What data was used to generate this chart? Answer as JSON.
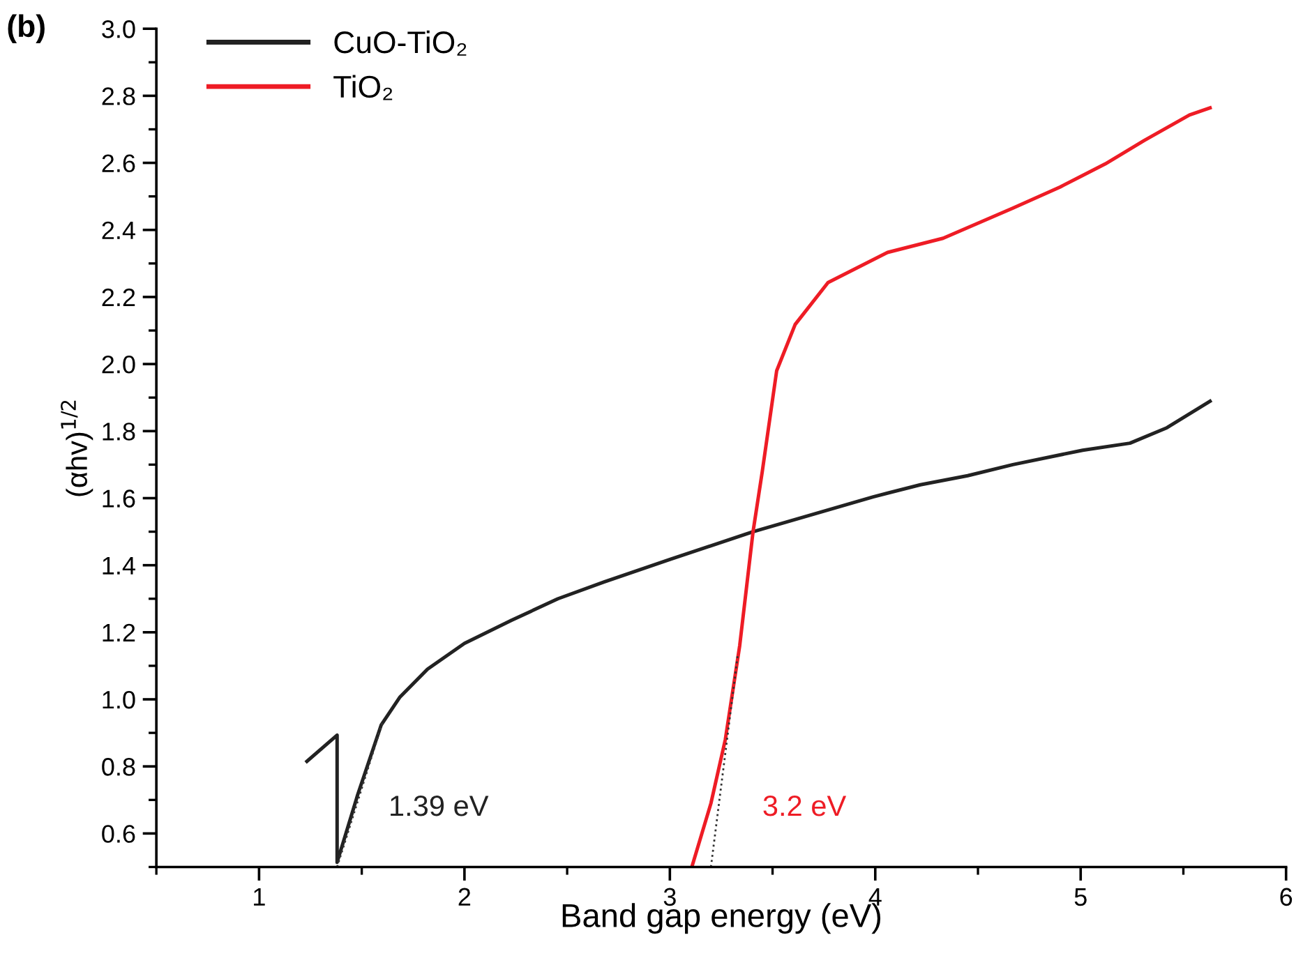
{
  "chart_data": {
    "type": "line",
    "xlabel": "Band gap energy (eV)",
    "ylabel": "(αhv)$^{1/2}$",
    "xlim": [
      0.5,
      6
    ],
    "xticks": [
      1,
      2,
      3,
      4,
      5,
      6
    ],
    "ylim": [
      0.5,
      3.0
    ],
    "yticks": [
      0.6,
      0.8,
      {
        "value": 1,
        "label": "1.0"
      },
      1.2,
      1.4,
      1.6,
      1.8,
      {
        "value": 2,
        "label": "2.0"
      },
      2.2,
      2.4,
      2.6,
      2.8,
      {
        "value": 3,
        "label": "3.0"
      }
    ],
    "grid": false,
    "legend": "top left",
    "line_style": "solid",
    "marker": "none",
    "series": [
      {
        "name": "CuO-TiO₂",
        "color": "#222222",
        "x": [
          1.233,
          1.38,
          1.38,
          1.48,
          1.595,
          1.686,
          1.82,
          2.0,
          2.23,
          2.455,
          2.68,
          3.0,
          3.405,
          3.99,
          4.22,
          4.45,
          4.67,
          5.01,
          5.24,
          5.42,
          5.63
        ],
        "values": [
          0.815,
          0.893,
          0.514,
          0.715,
          0.924,
          1.007,
          1.09,
          1.167,
          1.236,
          1.3,
          1.35,
          1.417,
          1.5,
          1.604,
          1.64,
          1.667,
          1.7,
          1.743,
          1.764,
          1.81,
          1.889
        ]
      },
      {
        "name": "TiO₂",
        "color": "#ee1c25",
        "x": [
          3.107,
          3.2,
          3.27,
          3.34,
          3.405,
          3.45,
          3.52,
          3.61,
          3.77,
          4.06,
          4.33,
          4.67,
          4.9,
          5.12,
          5.31,
          5.53,
          5.63
        ],
        "values": [
          0.5,
          0.69,
          0.88,
          1.16,
          1.5,
          1.68,
          1.98,
          2.118,
          2.243,
          2.333,
          2.375,
          2.465,
          2.528,
          2.597,
          2.667,
          2.743,
          2.764
        ]
      },
      {
        "type": "line",
        "color": "#333333",
        "line_style": "dotted",
        "x": [
          1.38,
          1.6
        ],
        "values": [
          0.5,
          0.93
        ]
      },
      {
        "type": "line",
        "color": "#333333",
        "line_style": "dotted",
        "x": [
          3.2,
          3.33
        ],
        "values": [
          0.5,
          1.13
        ]
      }
    ],
    "annotations": [
      "(b)",
      "1.39 eV",
      "3.2 eV"
    ]
  }
}
